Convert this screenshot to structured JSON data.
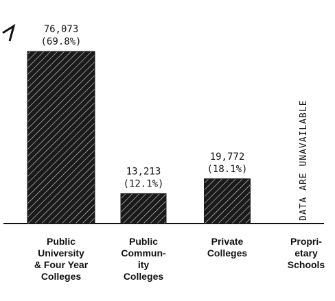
{
  "chart_data": {
    "type": "bar",
    "categories": [
      [
        "Public",
        "University",
        "& Four Year",
        "Colleges"
      ],
      [
        "Public",
        "Commun-",
        "ity",
        "Colleges"
      ],
      [
        "Private",
        "Colleges"
      ],
      [
        "Propri-",
        "etary",
        "Schools"
      ]
    ],
    "values": [
      76073,
      13213,
      19772,
      null
    ],
    "value_labels": [
      "76,073",
      "13,213",
      "19,772",
      null
    ],
    "share_values": [
      69.8,
      12.1,
      18.1,
      null
    ],
    "share_labels": [
      "(69.8%)",
      "(12.1%)",
      "(18.1%)",
      null
    ],
    "color": "#1a1a1a",
    "annotation": "DATA ARE UNAVAILABLE"
  }
}
